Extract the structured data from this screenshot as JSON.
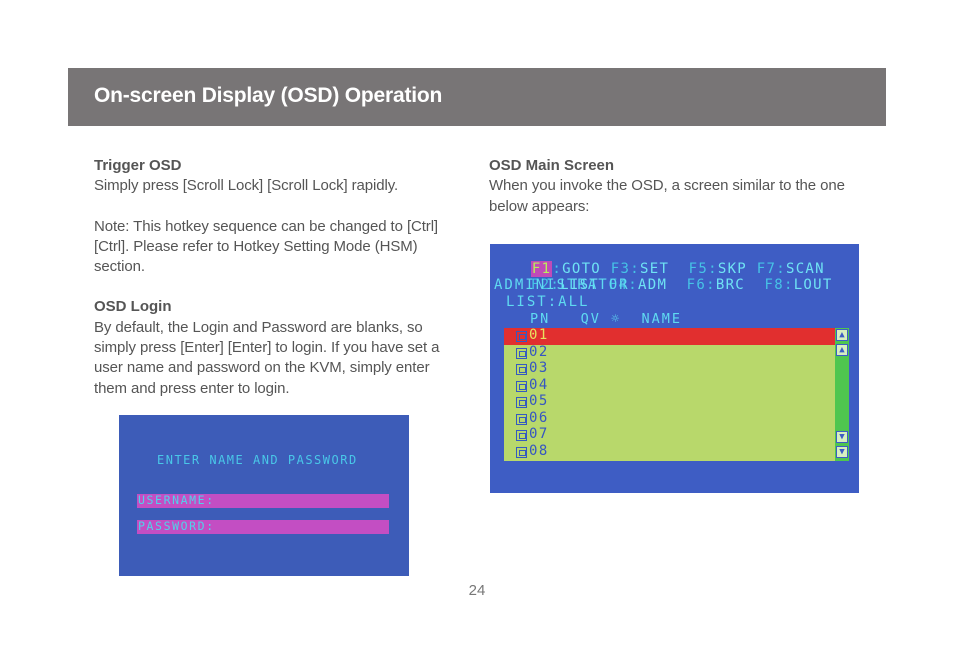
{
  "header": {
    "title": "On-screen Display (OSD) Operation"
  },
  "left": {
    "trigger_title": "Trigger OSD",
    "trigger_text": "Simply press [Scroll Lock] [Scroll Lock] rapidly.",
    "note_text": "Note: This hotkey sequence can be changed to [Ctrl] [Ctrl]. Please refer to Hotkey Setting Mode (HSM) section.",
    "login_title": "OSD Login",
    "login_text": "By default, the Login and Password are blanks, so simply press [Enter] [Enter] to login. If you have set a user name and password on the KVM, simply enter them and press enter to login."
  },
  "right": {
    "main_title": "OSD Main Screen",
    "main_text": "When you invoke the OSD, a screen similar to the one below appears:"
  },
  "login_screen": {
    "prompt": "ENTER NAME AND PASSWORD",
    "username_label": "USERNAME:",
    "password_label": "PASSWORD:"
  },
  "main_screen": {
    "fkeys_row1": [
      {
        "key": "F1",
        "label": "GOTO"
      },
      {
        "key": "F3",
        "label": "SET"
      },
      {
        "key": "F5",
        "label": "SKP"
      },
      {
        "key": "F7",
        "label": "SCAN"
      }
    ],
    "fkeys_row2": [
      {
        "key": "F2",
        "label": "LIST"
      },
      {
        "key": "F4",
        "label": "ADM"
      },
      {
        "key": "F6",
        "label": "BRC"
      },
      {
        "key": "F8",
        "label": "LOUT"
      }
    ],
    "user": "ADMINISTRATOR",
    "list_mode": "LIST:ALL",
    "col_pn": "PN",
    "col_qv": "QV",
    "col_name": "NAME",
    "ports": [
      "01",
      "02",
      "03",
      "04",
      "05",
      "06",
      "07",
      "08"
    ],
    "selected_port": "01",
    "colors": {
      "background": "#3e5dc4",
      "list_background": "#b8d86b",
      "selected_row": "#e12f2f",
      "scrollbar": "#4fc64f"
    }
  },
  "page_number": "24"
}
